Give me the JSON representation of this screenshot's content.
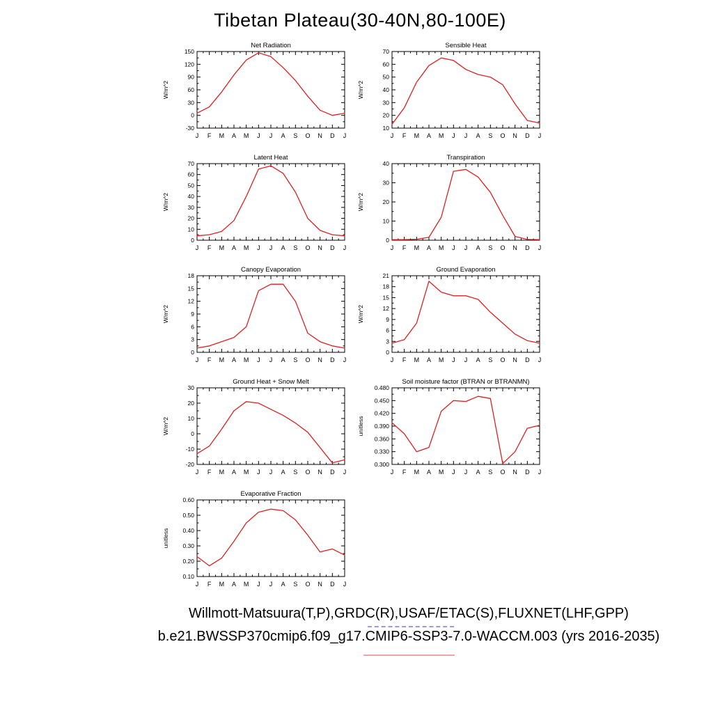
{
  "title": "Tibetan Plateau(30-40N,80-100E)",
  "captions": {
    "line1": "Willmott-Matsuura(T,P),GRDC(R),USAF/ETAC(S),FLUXNET(LHF,GPP)",
    "line2": "b.e21.BWSSP370cmip6.f09_g17.CMIP6-SSP3-7.0-WACCM.003 (yrs 2016-2035)"
  },
  "colors": {
    "line": "#e01f1f",
    "axis": "#000000",
    "underline_dashed": "#9a9ade",
    "underline_solid": "#f2a3a3"
  },
  "chart_data": {
    "type": "line",
    "x_categories": [
      "J",
      "F",
      "M",
      "A",
      "M",
      "J",
      "J",
      "A",
      "S",
      "O",
      "N",
      "D",
      "J"
    ],
    "legend": "none",
    "grid": false,
    "charts": [
      {
        "id": "net-radiation",
        "title": "Net Radiation",
        "ylabel": "W/m^2",
        "ylim": [
          -30,
          150
        ],
        "ystep": 30,
        "ydecimals": 0,
        "values": [
          5,
          20,
          55,
          95,
          130,
          147,
          138,
          112,
          82,
          45,
          12,
          0,
          5
        ]
      },
      {
        "id": "sensible-heat",
        "title": "Sensible Heat",
        "ylabel": "W/m^2",
        "ylim": [
          10,
          70
        ],
        "ystep": 10,
        "ydecimals": 0,
        "values": [
          13,
          26,
          46,
          59,
          65,
          63,
          56,
          52,
          50,
          44,
          29,
          16,
          14
        ]
      },
      {
        "id": "latent-heat",
        "title": "Latent Heat",
        "ylabel": "W/m^2",
        "ylim": [
          0,
          70
        ],
        "ystep": 10,
        "ydecimals": 0,
        "values": [
          4,
          5,
          8,
          18,
          40,
          65,
          68,
          61,
          44,
          20,
          9,
          5,
          4
        ]
      },
      {
        "id": "transpiration",
        "title": "Transpiration",
        "ylabel": "W/m^2",
        "ylim": [
          0,
          40
        ],
        "ystep": 10,
        "ydecimals": 0,
        "values": [
          0.3,
          0.3,
          0.5,
          1.5,
          12,
          36,
          37,
          33,
          25,
          13,
          2,
          0.4,
          0.3
        ]
      },
      {
        "id": "canopy-evaporation",
        "title": "Canopy Evaporation",
        "ylabel": "W/m^2",
        "ylim": [
          0,
          18
        ],
        "ystep": 3,
        "ydecimals": 0,
        "values": [
          1,
          1.5,
          2.5,
          3.5,
          6,
          14.5,
          16,
          16,
          12,
          4.5,
          2.5,
          1.5,
          1
        ]
      },
      {
        "id": "ground-evaporation",
        "title": "Ground Evaporation",
        "ylabel": "W/m^2",
        "ylim": [
          0,
          21
        ],
        "ystep": 3,
        "ydecimals": 0,
        "values": [
          2.5,
          3.5,
          8,
          19.5,
          16.5,
          15.5,
          15.5,
          14.5,
          11,
          8,
          5,
          3.2,
          2.5
        ]
      },
      {
        "id": "ground-heat-snow-melt",
        "title": "Ground Heat + Snow Melt",
        "ylabel": "W/m^2",
        "ylim": [
          -20,
          30
        ],
        "ystep": 10,
        "ydecimals": 0,
        "values": [
          -13,
          -8,
          3,
          15,
          21,
          20,
          16,
          12,
          7,
          1,
          -9,
          -19,
          -17
        ]
      },
      {
        "id": "soil-moisture-factor",
        "title": "Soil moisture factor (BTRAN or BTRANMN)",
        "ylabel": "unitless",
        "ylim": [
          0.3,
          0.48
        ],
        "ystep": 0.03,
        "ydecimals": 3,
        "values": [
          0.398,
          0.372,
          0.33,
          0.34,
          0.425,
          0.45,
          0.448,
          0.46,
          0.455,
          0.302,
          0.33,
          0.385,
          0.392
        ]
      },
      {
        "id": "evaporative-fraction",
        "title": "Evaporative Fraction",
        "ylabel": "unitless",
        "ylim": [
          0.1,
          0.6
        ],
        "ystep": 0.1,
        "ydecimals": 2,
        "values": [
          0.23,
          0.17,
          0.22,
          0.33,
          0.45,
          0.52,
          0.54,
          0.53,
          0.47,
          0.37,
          0.26,
          0.28,
          0.24
        ]
      }
    ]
  }
}
